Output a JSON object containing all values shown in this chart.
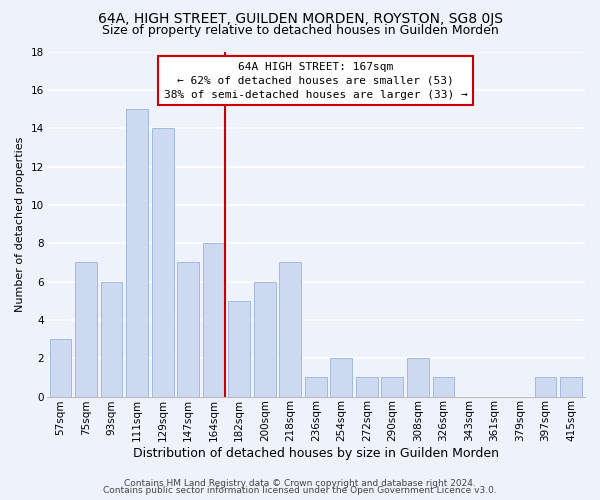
{
  "title": "64A, HIGH STREET, GUILDEN MORDEN, ROYSTON, SG8 0JS",
  "subtitle": "Size of property relative to detached houses in Guilden Morden",
  "xlabel": "Distribution of detached houses by size in Guilden Morden",
  "ylabel": "Number of detached properties",
  "bar_labels": [
    "57sqm",
    "75sqm",
    "93sqm",
    "111sqm",
    "129sqm",
    "147sqm",
    "164sqm",
    "182sqm",
    "200sqm",
    "218sqm",
    "236sqm",
    "254sqm",
    "272sqm",
    "290sqm",
    "308sqm",
    "326sqm",
    "343sqm",
    "361sqm",
    "379sqm",
    "397sqm",
    "415sqm"
  ],
  "bar_values": [
    3,
    7,
    6,
    15,
    14,
    7,
    8,
    5,
    6,
    7,
    1,
    2,
    1,
    1,
    2,
    1,
    0,
    0,
    0,
    1,
    1
  ],
  "bar_color": "#ccd9f0",
  "bar_edge_color": "#99b3d9",
  "reference_line_index": 6,
  "annotation_title": "64A HIGH STREET: 167sqm",
  "annotation_line1": "← 62% of detached houses are smaller (53)",
  "annotation_line2": "38% of semi-detached houses are larger (33) →",
  "ylim": [
    0,
    18
  ],
  "yticks": [
    0,
    2,
    4,
    6,
    8,
    10,
    12,
    14,
    16,
    18
  ],
  "footer1": "Contains HM Land Registry data © Crown copyright and database right 2024.",
  "footer2": "Contains public sector information licensed under the Open Government Licence v3.0.",
  "background_color": "#eef2fa",
  "grid_color": "#ffffff",
  "annotation_box_color": "#ffffff",
  "annotation_box_edge": "#cc0000",
  "ref_line_color": "#cc0000",
  "title_fontsize": 10,
  "subtitle_fontsize": 9,
  "xlabel_fontsize": 9,
  "ylabel_fontsize": 8,
  "tick_fontsize": 7.5,
  "annotation_fontsize": 8,
  "footer_fontsize": 6.5
}
